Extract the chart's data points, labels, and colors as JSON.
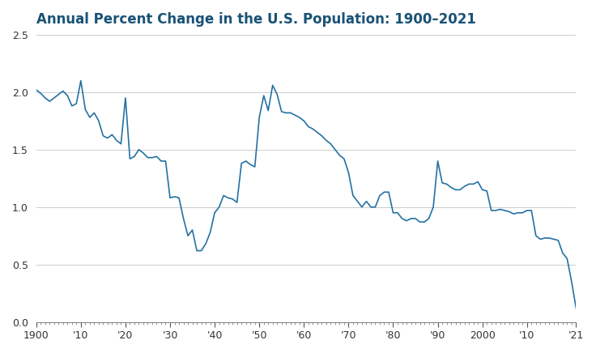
{
  "title": "Annual Percent Change in the U.S. Population: 1900–2021",
  "title_color": "#1a5276",
  "line_color": "#2471a3",
  "background_color": "#ffffff",
  "plot_bg_color": "#ffffff",
  "grid_color": "#cccccc",
  "xlim": [
    1900,
    2021
  ],
  "ylim": [
    0,
    2.5
  ],
  "yticks": [
    0,
    0.5,
    1.0,
    1.5,
    2.0,
    2.5
  ],
  "xtick_labels": [
    "1900",
    "'10",
    "'20",
    "'30",
    "'40",
    "'50",
    "'60",
    "'70",
    "'80",
    "'90",
    "2000",
    "'10",
    "'21"
  ],
  "xtick_positions": [
    1900,
    1910,
    1920,
    1930,
    1940,
    1950,
    1960,
    1970,
    1980,
    1990,
    2000,
    2010,
    2021
  ],
  "years": [
    1900,
    1901,
    1902,
    1903,
    1904,
    1905,
    1906,
    1907,
    1908,
    1909,
    1910,
    1911,
    1912,
    1913,
    1914,
    1915,
    1916,
    1917,
    1918,
    1919,
    1920,
    1921,
    1922,
    1923,
    1924,
    1925,
    1926,
    1927,
    1928,
    1929,
    1930,
    1931,
    1932,
    1933,
    1934,
    1935,
    1936,
    1937,
    1938,
    1939,
    1940,
    1941,
    1942,
    1943,
    1944,
    1945,
    1946,
    1947,
    1948,
    1949,
    1950,
    1951,
    1952,
    1953,
    1954,
    1955,
    1956,
    1957,
    1958,
    1959,
    1960,
    1961,
    1962,
    1963,
    1964,
    1965,
    1966,
    1967,
    1968,
    1969,
    1970,
    1971,
    1972,
    1973,
    1974,
    1975,
    1976,
    1977,
    1978,
    1979,
    1980,
    1981,
    1982,
    1983,
    1984,
    1985,
    1986,
    1987,
    1988,
    1989,
    1990,
    1991,
    1992,
    1993,
    1994,
    1995,
    1996,
    1997,
    1998,
    1999,
    2000,
    2001,
    2002,
    2003,
    2004,
    2005,
    2006,
    2007,
    2008,
    2009,
    2010,
    2011,
    2012,
    2013,
    2014,
    2015,
    2016,
    2017,
    2018,
    2019,
    2020,
    2021
  ],
  "values": [
    2.02,
    1.99,
    1.95,
    1.92,
    1.95,
    1.98,
    2.01,
    1.97,
    1.88,
    1.9,
    2.1,
    1.85,
    1.78,
    1.82,
    1.75,
    1.62,
    1.6,
    1.63,
    1.58,
    1.55,
    1.95,
    1.42,
    1.44,
    1.5,
    1.47,
    1.43,
    1.43,
    1.44,
    1.4,
    1.4,
    1.08,
    1.09,
    1.08,
    0.9,
    0.75,
    0.8,
    0.62,
    0.62,
    0.68,
    0.78,
    0.95,
    1.0,
    1.1,
    1.08,
    1.07,
    1.04,
    1.38,
    1.4,
    1.37,
    1.35,
    1.78,
    1.97,
    1.84,
    2.06,
    1.98,
    1.83,
    1.82,
    1.82,
    1.8,
    1.78,
    1.75,
    1.7,
    1.68,
    1.65,
    1.62,
    1.58,
    1.55,
    1.5,
    1.45,
    1.42,
    1.3,
    1.1,
    1.05,
    1.0,
    1.05,
    1.0,
    1.0,
    1.1,
    1.13,
    1.13,
    0.95,
    0.95,
    0.9,
    0.88,
    0.9,
    0.9,
    0.87,
    0.87,
    0.9,
    1.0,
    1.4,
    1.21,
    1.2,
    1.17,
    1.15,
    1.15,
    1.18,
    1.2,
    1.2,
    1.22,
    1.15,
    1.14,
    0.97,
    0.97,
    0.98,
    0.97,
    0.96,
    0.94,
    0.95,
    0.95,
    0.97,
    0.97,
    0.75,
    0.72,
    0.73,
    0.73,
    0.72,
    0.71,
    0.6,
    0.55,
    0.35,
    0.12
  ]
}
